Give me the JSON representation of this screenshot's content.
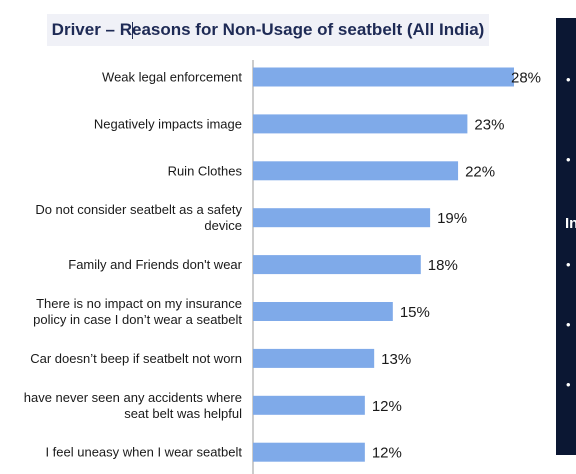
{
  "title": "Driver – Reasons for Non-Usage of seatbelt (All India)",
  "chart_data": {
    "type": "bar",
    "orientation": "horizontal",
    "title": "Driver – Reasons for Non-Usage of seatbelt (All India)",
    "categories": [
      "Weak legal enforcement",
      "Negatively impacts image",
      "Ruin Clothes",
      [
        "Do not consider seatbelt as a safety",
        "device"
      ],
      "Family and Friends don't wear",
      [
        "There is no impact on my insurance",
        "policy in case I don’t wear a seatbelt"
      ],
      "Car doesn’t beep if seatbelt not worn",
      [
        "have never seen any accidents where",
        "seat belt was helpful"
      ],
      "I feel uneasy when I wear seatbelt"
    ],
    "values": [
      28,
      23,
      22,
      19,
      18,
      15,
      13,
      12,
      12
    ],
    "value_labels": [
      "28%",
      "23%",
      "22%",
      "19%",
      "18%",
      "15%",
      "13%",
      "12%",
      "12%"
    ],
    "unit": "%",
    "xlim": [
      0,
      28
    ],
    "color": "#7faae9",
    "grid": false,
    "legend": "none"
  },
  "side_panel": {
    "heading": "In",
    "bullet": "•",
    "background": "#0b1733"
  }
}
